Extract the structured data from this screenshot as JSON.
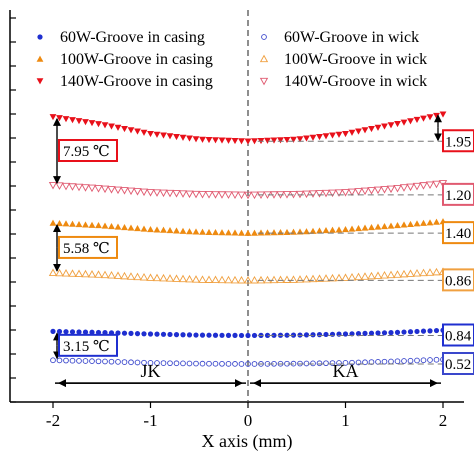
{
  "chart_data": {
    "type": "scatter",
    "xlabel": "X axis (mm)",
    "ylabel": "",
    "xlim": [
      -2,
      2
    ],
    "ylim": [
      0,
      10.4
    ],
    "xticks": [
      -2,
      -1,
      0,
      1,
      2
    ],
    "xtick_labels": [
      "-2",
      "-1",
      "0",
      "1",
      "2"
    ],
    "legend_position": "top",
    "series": [
      {
        "name": "60W-Groove in casing",
        "marker": "circle-filled",
        "color": "#1f2fd0",
        "x": [
          -2,
          -1.5,
          -1,
          -0.5,
          0,
          0.5,
          1,
          1.5,
          2
        ],
        "y": [
          1.83,
          1.8,
          1.76,
          1.73,
          1.72,
          1.73,
          1.76,
          1.8,
          1.86
        ]
      },
      {
        "name": "60W-Groove in wick",
        "marker": "circle-open",
        "color": "#3a47cc",
        "x": [
          -2,
          -1.5,
          -1,
          -0.5,
          0,
          0.5,
          1,
          1.5,
          2
        ],
        "y": [
          1.06,
          1.03,
          0.99,
          0.97,
          0.96,
          0.97,
          0.99,
          1.03,
          1.08
        ]
      },
      {
        "name": "100W-Groove in casing",
        "marker": "triangle-up-filled",
        "color": "#ee8a10",
        "x": [
          -2,
          -1.5,
          -1,
          -0.5,
          0,
          0.5,
          1,
          1.5,
          2
        ],
        "y": [
          4.72,
          4.65,
          4.55,
          4.48,
          4.45,
          4.48,
          4.55,
          4.65,
          4.76
        ]
      },
      {
        "name": "100W-Groove in wick",
        "marker": "triangle-up-open",
        "color": "#f0a040",
        "x": [
          -2,
          -1.5,
          -1,
          -0.5,
          0,
          0.5,
          1,
          1.5,
          2
        ],
        "y": [
          3.39,
          3.34,
          3.26,
          3.21,
          3.19,
          3.21,
          3.26,
          3.34,
          3.42
        ]
      },
      {
        "name": "140W-Groove in casing",
        "marker": "triangle-down-filled",
        "color": "#e8101a",
        "x": [
          -2,
          -1.5,
          -1,
          -0.5,
          0,
          0.5,
          1,
          1.5,
          2
        ],
        "y": [
          7.55,
          7.35,
          7.1,
          6.95,
          6.9,
          6.95,
          7.1,
          7.35,
          7.62
        ]
      },
      {
        "name": "140W-Groove in wick",
        "marker": "triangle-down-open",
        "color": "#e05a70",
        "x": [
          -2,
          -1.5,
          -1,
          -0.5,
          0,
          0.5,
          1,
          1.5,
          2
        ],
        "y": [
          5.73,
          5.64,
          5.54,
          5.49,
          5.47,
          5.49,
          5.54,
          5.64,
          5.78
        ]
      }
    ],
    "annotations": {
      "regions": [
        {
          "label": "JK",
          "from": -2,
          "to": 0
        },
        {
          "label": "KA",
          "from": 0,
          "to": 2
        }
      ],
      "left_differences": [
        {
          "label": "7.95 ℃",
          "color": "#e8101a",
          "top": 7.55,
          "bottom": 5.73
        },
        {
          "label": "5.58 ℃",
          "color": "#ee8a10",
          "top": 4.72,
          "bottom": 3.39
        },
        {
          "label": "3.15 ℃",
          "color": "#1f2fd0",
          "top": 1.83,
          "bottom": 1.06
        }
      ],
      "right_differences": [
        {
          "label": "1.95",
          "color": "#e8101a",
          "top": 7.62,
          "bottom": 6.9
        },
        {
          "label": "1.20",
          "color": "#e05a70",
          "top": 5.78,
          "bottom": 5.47
        },
        {
          "label": "1.40",
          "color": "#ee8a10",
          "top": 4.76,
          "bottom": 4.45
        },
        {
          "label": "0.86",
          "color": "#f0a040",
          "top": 3.42,
          "bottom": 3.19
        },
        {
          "label": "0.84",
          "color": "#1f2fd0",
          "top": 1.86,
          "bottom": 1.72
        },
        {
          "label": "0.52",
          "color": "#3a47cc",
          "top": 1.08,
          "bottom": 0.96
        }
      ]
    }
  }
}
